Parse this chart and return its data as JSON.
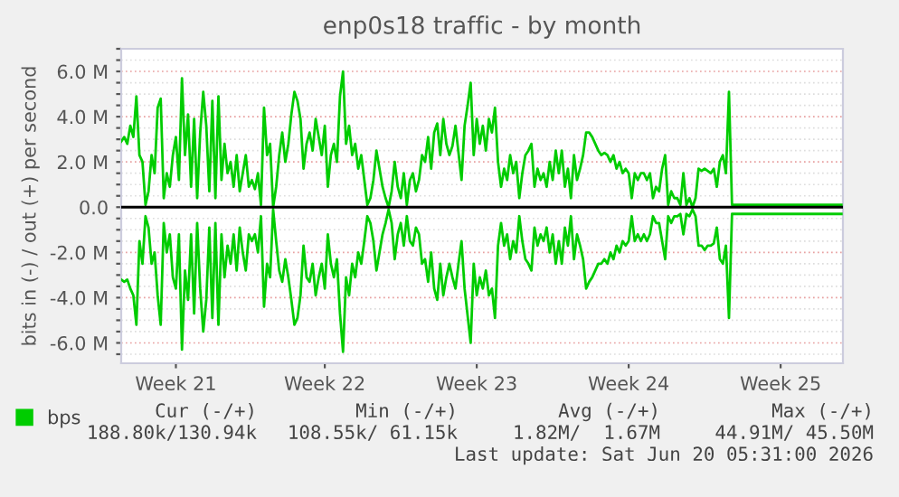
{
  "chart_data": {
    "type": "line",
    "title": "enp0s18 traffic - by month",
    "ylabel": "bits in (-) / out (+) per second",
    "categories": [
      null,
      null,
      null,
      null,
      null,
      null,
      null,
      null,
      null,
      null,
      null,
      null,
      null,
      null,
      null,
      null,
      null,
      null,
      "Week 21",
      null,
      null,
      null,
      null,
      null,
      null,
      null,
      null,
      null,
      null,
      null,
      null,
      null,
      null,
      null,
      null,
      null,
      null,
      null,
      null,
      null,
      null,
      null,
      null,
      null,
      null,
      null,
      null,
      null,
      null,
      null,
      null,
      null,
      null,
      null,
      null,
      null,
      null,
      null,
      null,
      null,
      null,
      null,
      null,
      null,
      null,
      null,
      null,
      "Week 22",
      null,
      null,
      null,
      null,
      null,
      null,
      null,
      null,
      null,
      null,
      null,
      null,
      null,
      null,
      null,
      null,
      null,
      null,
      null,
      null,
      null,
      null,
      null,
      null,
      null,
      null,
      null,
      null,
      null,
      null,
      null,
      null,
      null,
      null,
      null,
      null,
      null,
      null,
      null,
      null,
      null,
      null,
      null,
      null,
      null,
      null,
      null,
      null,
      null,
      "Week 23",
      null,
      null,
      null,
      null,
      null,
      null,
      null,
      null,
      null,
      null,
      null,
      null,
      null,
      null,
      null,
      null,
      null,
      null,
      null,
      null,
      null,
      null,
      null,
      null,
      null,
      null,
      null,
      null,
      null,
      null,
      null,
      null,
      null,
      null,
      null,
      null,
      null,
      null,
      null,
      null,
      null,
      null,
      null,
      null,
      null,
      null,
      null,
      null,
      null,
      "Week 24",
      null,
      null,
      null,
      null,
      null,
      null,
      null,
      null,
      null,
      null,
      null,
      null,
      null,
      null,
      null,
      null,
      null,
      null,
      null,
      null,
      null,
      null,
      null,
      null,
      null,
      null,
      null,
      null,
      null,
      null,
      null,
      null,
      null,
      null,
      null,
      null,
      null,
      null,
      null,
      null,
      null,
      null,
      null,
      null,
      null,
      null,
      null,
      null,
      null,
      "Week 25",
      null,
      null,
      null,
      null,
      null,
      null,
      null,
      null,
      null,
      null,
      null,
      null,
      null,
      null,
      null,
      null,
      null,
      null,
      null,
      null
    ],
    "series": [
      {
        "name": "bps",
        "color": "#00cc00",
        "values": [
          2.9,
          3.1,
          2.8,
          3.6,
          3.1,
          4.9,
          2.3,
          2.0,
          0.1,
          0.7,
          2.3,
          1.5,
          4.4,
          4.8,
          0.4,
          1.5,
          0.9,
          2.3,
          3.1,
          1.2,
          5.7,
          2.3,
          4.1,
          0.9,
          3.9,
          0.4,
          3.3,
          5.1,
          3.6,
          0.7,
          4.7,
          0.4,
          4.9,
          1.2,
          2.8,
          1.5,
          2.0,
          0.9,
          2.3,
          0.7,
          1.5,
          2.3,
          0.9,
          1.2,
          0.8,
          1.5,
          0.1,
          4.4,
          2.3,
          2.8,
          0,
          0.9,
          2.3,
          3.3,
          2.0,
          2.8,
          4.1,
          5.1,
          4.7,
          3.9,
          1.7,
          2.8,
          3.3,
          2.5,
          3.9,
          3.1,
          2.3,
          3.6,
          0.9,
          2.3,
          2.8,
          2.0,
          4.9,
          6.0,
          2.8,
          3.6,
          2.3,
          2.8,
          1.7,
          2.3,
          1.2,
          0.1,
          0.4,
          1.2,
          2.5,
          1.7,
          0.9,
          0.4,
          0,
          0.7,
          2.0,
          0.9,
          0.4,
          1.5,
          0.1,
          1.2,
          1.5,
          0.7,
          1.2,
          2.3,
          2.0,
          3.1,
          1.7,
          3.3,
          3.7,
          2.3,
          3.9,
          2.8,
          2.3,
          2.7,
          3.6,
          2.4,
          1.2,
          3.6,
          4.5,
          5.5,
          2.3,
          3.9,
          2.8,
          3.6,
          2.5,
          3.9,
          3.3,
          4.4,
          2.0,
          0.9,
          1.7,
          1.2,
          2.3,
          1.5,
          2.0,
          0.4,
          1.5,
          2.3,
          2.5,
          2.8,
          0.9,
          1.7,
          1.2,
          1.5,
          0.9,
          2.0,
          1.2,
          2.5,
          1.5,
          2.5,
          0.9,
          1.7,
          0.4,
          2.3,
          1.2,
          1.7,
          2.3,
          3.3,
          3.3,
          3.1,
          2.8,
          2.5,
          2.3,
          2.4,
          2.3,
          2.0,
          2.3,
          1.7,
          2.0,
          1.5,
          1.7,
          1.5,
          0.4,
          1.5,
          1.2,
          1.5,
          1.5,
          1.2,
          1.5,
          0.4,
          0.9,
          0.7,
          1.7,
          2.3,
          0.1,
          0.7,
          0.4,
          0.4,
          0.1,
          1.5,
          0.1,
          0.4,
          0,
          0.4,
          1.7,
          1.6,
          1.7,
          1.6,
          1.5,
          1.7,
          0.9,
          2.0,
          2.3,
          1.5,
          5.1,
          0.1,
          0.1,
          0.1,
          0.1,
          0.1,
          0.1,
          0.1,
          0.1,
          0.1,
          0.1,
          0.1,
          0.1,
          0.1,
          0.1,
          0.1,
          0.1,
          0.1,
          0.1,
          0.1,
          0.1,
          0.1,
          0.1,
          0.1,
          0.1,
          0.1,
          0.1,
          0.1,
          0.1,
          0.1,
          0.1,
          0.1,
          0.1,
          0.1,
          0.1,
          0.1,
          0.1,
          0.1
        ]
      },
      {
        "color": "#00cc00",
        "values": [
          -3.2,
          -3.3,
          -3.2,
          -3.6,
          -3.9,
          -5.2,
          -1.5,
          -2.5,
          -0.4,
          -0.9,
          -2.5,
          -2.0,
          -3.9,
          -5.2,
          -0.7,
          -2.0,
          -1.2,
          -3.1,
          -3.6,
          -1.2,
          -6.3,
          -2.8,
          -4.1,
          -1.2,
          -4.7,
          -0.7,
          -3.6,
          -5.5,
          -4.1,
          -0.9,
          -4.9,
          -0.7,
          -5.2,
          -1.2,
          -3.1,
          -1.7,
          -2.5,
          -1.2,
          -2.8,
          -0.9,
          -2.0,
          -2.8,
          -1.2,
          -1.5,
          -1.2,
          -2.0,
          -0.4,
          -4.4,
          -2.5,
          -3.1,
          -0.1,
          -1.5,
          -2.8,
          -3.3,
          -2.3,
          -3.1,
          -4.1,
          -5.2,
          -4.9,
          -3.9,
          -1.7,
          -3.1,
          -3.3,
          -2.5,
          -3.9,
          -3.1,
          -2.5,
          -3.6,
          -1.2,
          -2.5,
          -3.1,
          -2.3,
          -4.7,
          -6.4,
          -3.1,
          -3.9,
          -2.5,
          -3.1,
          -2.0,
          -2.5,
          -1.5,
          -0.4,
          -0.7,
          -1.5,
          -2.8,
          -2.0,
          -1.2,
          -0.7,
          -0.1,
          -0.7,
          -2.3,
          -1.2,
          -0.7,
          -1.7,
          -0.4,
          -1.5,
          -1.7,
          -0.9,
          -1.2,
          -2.5,
          -2.3,
          -3.3,
          -2.0,
          -3.6,
          -4.1,
          -2.5,
          -3.9,
          -3.1,
          -2.5,
          -3.1,
          -3.6,
          -2.5,
          -1.5,
          -3.6,
          -4.8,
          -6.0,
          -2.5,
          -3.9,
          -3.1,
          -3.6,
          -2.8,
          -3.9,
          -3.6,
          -4.9,
          -1.7,
          -0.7,
          -1.7,
          -1.2,
          -2.3,
          -1.5,
          -2.0,
          -0.4,
          -1.5,
          -2.3,
          -2.5,
          -2.8,
          -0.9,
          -1.7,
          -1.2,
          -1.5,
          -0.9,
          -2.0,
          -1.2,
          -2.5,
          -1.5,
          -2.5,
          -0.9,
          -1.7,
          -0.4,
          -2.3,
          -1.2,
          -1.7,
          -2.3,
          -3.6,
          -3.3,
          -3.1,
          -2.8,
          -2.5,
          -2.5,
          -2.3,
          -2.5,
          -2.0,
          -2.3,
          -1.7,
          -2.0,
          -1.5,
          -1.7,
          -1.5,
          -0.4,
          -1.5,
          -1.2,
          -1.5,
          -1.2,
          -1.5,
          -1.2,
          -0.4,
          -0.7,
          -0.7,
          -1.5,
          -2.3,
          -0.4,
          -0.7,
          -0.4,
          -0.4,
          -0.3,
          -1.2,
          -0.3,
          -0.4,
          -0.1,
          -0.4,
          -1.7,
          -1.7,
          -1.9,
          -1.7,
          -1.7,
          -1.6,
          -0.9,
          -2.3,
          -2.5,
          -1.7,
          -4.9,
          -0.3,
          -0.3,
          -0.3,
          -0.3,
          -0.3,
          -0.3,
          -0.3,
          -0.3,
          -0.3,
          -0.3,
          -0.3,
          -0.3,
          -0.3,
          -0.3,
          -0.3,
          -0.3,
          -0.3,
          -0.3,
          -0.3,
          -0.3,
          -0.3,
          -0.3,
          -0.3,
          -0.3,
          -0.3,
          -0.3,
          -0.3,
          -0.3,
          -0.3,
          -0.3,
          -0.3,
          -0.3,
          -0.3,
          -0.3,
          -0.3,
          -0.3,
          -0.3
        ]
      }
    ],
    "ylim": [
      -6.9,
      7.0
    ],
    "yticks": [
      {
        "value": -6.5,
        "label": null
      },
      {
        "value": -6,
        "label": "-6.0 M"
      },
      {
        "value": -5.5,
        "label": null
      },
      {
        "value": -5,
        "label": null
      },
      {
        "value": -4.5,
        "label": null
      },
      {
        "value": -4,
        "label": "-4.0 M"
      },
      {
        "value": -3.5,
        "label": null
      },
      {
        "value": -3,
        "label": null
      },
      {
        "value": -2.5,
        "label": null
      },
      {
        "value": -2,
        "label": "-2.0 M"
      },
      {
        "value": -1.5,
        "label": null
      },
      {
        "value": -1,
        "label": null
      },
      {
        "value": -0.5,
        "label": null
      },
      {
        "value": 0,
        "label": "0.0"
      },
      {
        "value": 0.5,
        "label": null
      },
      {
        "value": 1,
        "label": null
      },
      {
        "value": 1.5,
        "label": null
      },
      {
        "value": 2,
        "label": "2.0 M"
      },
      {
        "value": 2.5,
        "label": null
      },
      {
        "value": 3,
        "label": null
      },
      {
        "value": 3.5,
        "label": null
      },
      {
        "value": 4,
        "label": "4.0 M"
      },
      {
        "value": 4.5,
        "label": null
      },
      {
        "value": 5,
        "label": null
      },
      {
        "value": 5.5,
        "label": null
      },
      {
        "value": 6,
        "label": "6.0 M"
      },
      {
        "value": 6.5,
        "label": null
      },
      {
        "value": 7,
        "label": null
      }
    ],
    "ref_lines": [
      {
        "axis": "y",
        "value": 0,
        "color": "#000000"
      }
    ],
    "grid": "y",
    "legend": "bottom",
    "marker": "none",
    "line_style": "solid",
    "annotations": [
      "Cur (-/+)",
      "Min (-/+)",
      "Avg (-/+)",
      "Max (-/+)",
      "188.80k/130.94k",
      "108.55k/ 61.15k",
      "1.82M/  1.67M",
      "44.91M/ 45.50M",
      "Last update: Sat Jun 20 05:31:00 2026"
    ]
  }
}
